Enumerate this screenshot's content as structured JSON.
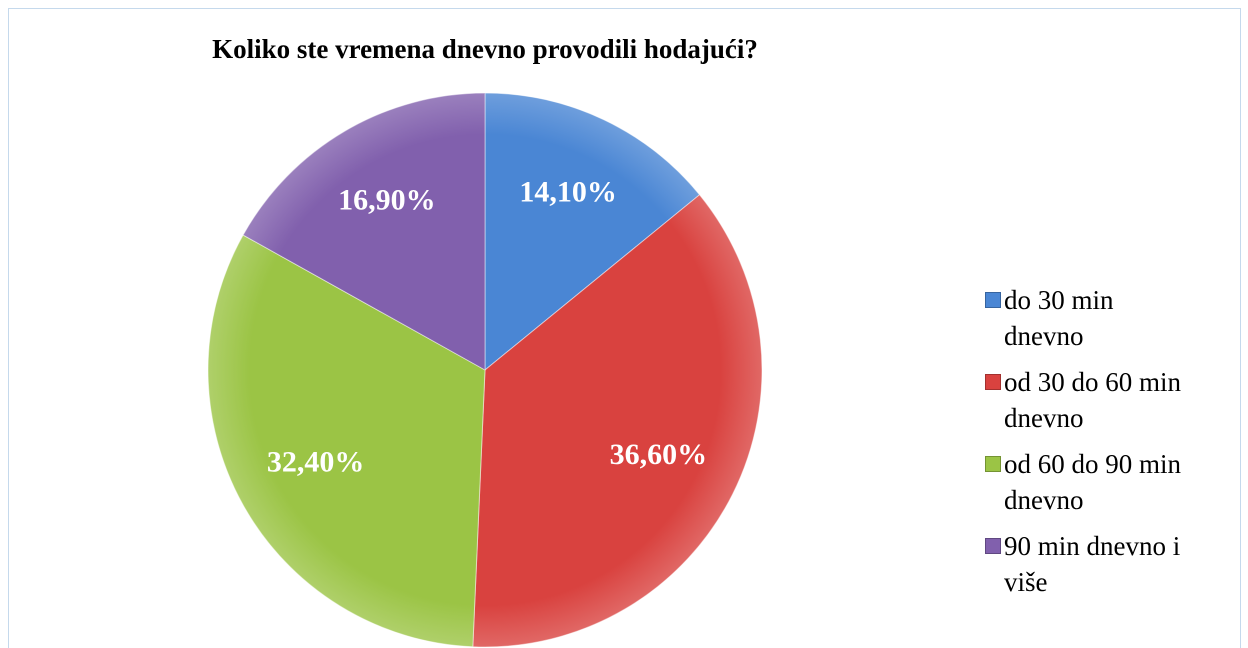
{
  "chart_data": {
    "type": "pie",
    "title": "Koliko ste vremena dnevno provodili hodajući?",
    "categories": [
      "do 30 min dnevno",
      "od 30 do 60 min dnevno",
      "od 60 do 90 min dnevno",
      "90 min dnevno i više"
    ],
    "values": [
      14.1,
      36.6,
      32.4,
      16.9
    ],
    "value_labels": [
      "14,10%",
      "36,60%",
      "32,40%",
      "16,90%"
    ],
    "colors": [
      "#4a86d4",
      "#d9423f",
      "#9bc445",
      "#8160ad"
    ],
    "legend": "right"
  }
}
